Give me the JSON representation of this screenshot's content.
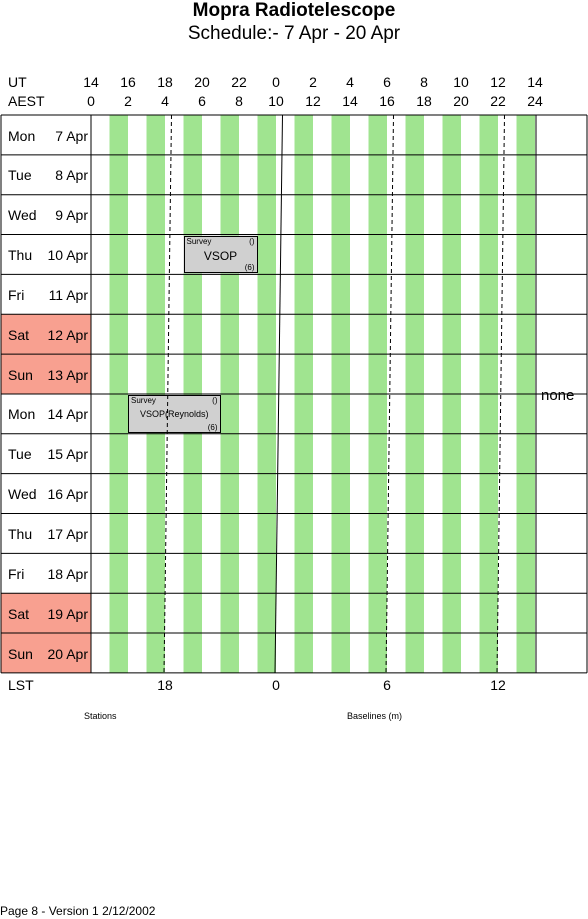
{
  "header": {
    "title": "Mopra Radiotelescope",
    "subtitle": "Schedule:- 7  Apr - 20 Apr"
  },
  "axes": {
    "ut_label": "UT",
    "aest_label": "AEST",
    "ut_ticks": [
      "14",
      "16",
      "18",
      "20",
      "22",
      "0",
      "2",
      "4",
      "6",
      "8",
      "10",
      "12",
      "14"
    ],
    "aest_ticks": [
      "0",
      "2",
      "4",
      "6",
      "8",
      "10",
      "12",
      "14",
      "16",
      "18",
      "20",
      "22",
      "24"
    ],
    "lst_label": "LST",
    "lst_ticks": [
      "18",
      "0",
      "6",
      "12"
    ]
  },
  "days": [
    {
      "weekday": "Mon",
      "date": "7  Apr",
      "weekend": false
    },
    {
      "weekday": "Tue",
      "date": "8  Apr",
      "weekend": false
    },
    {
      "weekday": "Wed",
      "date": "9  Apr",
      "weekend": false
    },
    {
      "weekday": "Thu",
      "date": "10 Apr",
      "weekend": false
    },
    {
      "weekday": "Fri",
      "date": "11 Apr",
      "weekend": false
    },
    {
      "weekday": "Sat",
      "date": "12 Apr",
      "weekend": true
    },
    {
      "weekday": "Sun",
      "date": "13 Apr",
      "weekend": true
    },
    {
      "weekday": "Mon",
      "date": "14 Apr",
      "weekend": false
    },
    {
      "weekday": "Tue",
      "date": "15 Apr",
      "weekend": false
    },
    {
      "weekday": "Wed",
      "date": "16 Apr",
      "weekend": false
    },
    {
      "weekday": "Thu",
      "date": "17 Apr",
      "weekend": false
    },
    {
      "weekday": "Fri",
      "date": "18 Apr",
      "weekend": false
    },
    {
      "weekday": "Sat",
      "date": "19 Apr",
      "weekend": true
    },
    {
      "weekday": "Sun",
      "date": "20 Apr",
      "weekend": true
    }
  ],
  "blocks": [
    {
      "day_index": 3,
      "start_aest": 5,
      "end_aest": 9,
      "top": "Survey",
      "paren": "()",
      "main": "VSOP",
      "num": "(6)"
    },
    {
      "day_index": 7,
      "start_aest": 2,
      "end_aest": 7,
      "top": "Survey",
      "paren": "()",
      "main": "VSOP(Reynolds)",
      "num": "(6)"
    }
  ],
  "stations_config": "none",
  "stations_label": "Stations",
  "baselines_label": "Baselines (m)",
  "footer": "Page 8 - Version 1  2/12/2002",
  "colors": {
    "stripe": "#a0e490",
    "weekend": "#f8a090",
    "block": "#d0d0d0"
  }
}
